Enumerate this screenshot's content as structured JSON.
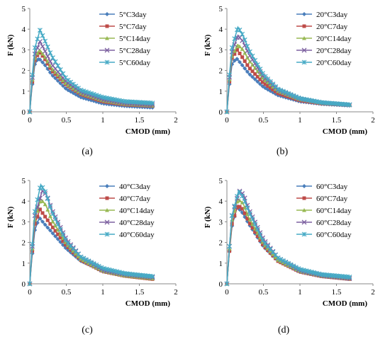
{
  "chart_data": [
    {
      "type": "line",
      "panel": "a",
      "caption": "(a)",
      "xlabel": "CMOD (mm)",
      "ylabel": "F (kN)",
      "xlim": [
        0,
        2
      ],
      "ylim": [
        0,
        5
      ],
      "xticks": [
        "0",
        "0.5",
        "1",
        "1.5",
        "2"
      ],
      "yticks": [
        "0",
        "1",
        "2",
        "3",
        "4",
        "5"
      ],
      "legend_position": "top-right",
      "series": [
        {
          "name": "5°C3day",
          "color": "#4a7ebb",
          "marker": "diamond",
          "x": [
            0,
            0.03,
            0.07,
            0.12,
            0.2,
            0.3,
            0.5,
            0.7,
            1.0,
            1.3,
            1.7
          ],
          "y": [
            0,
            1.2,
            2.3,
            2.6,
            2.3,
            1.8,
            1.1,
            0.7,
            0.4,
            0.28,
            0.2
          ]
        },
        {
          "name": "5°C7day",
          "color": "#be4b48",
          "marker": "square",
          "x": [
            0,
            0.03,
            0.07,
            0.13,
            0.2,
            0.3,
            0.5,
            0.7,
            1.0,
            1.3,
            1.7
          ],
          "y": [
            0,
            1.3,
            2.5,
            2.9,
            2.6,
            2.0,
            1.3,
            0.85,
            0.5,
            0.35,
            0.28
          ]
        },
        {
          "name": "5°C14day",
          "color": "#98b954",
          "marker": "triangle",
          "x": [
            0,
            0.03,
            0.07,
            0.13,
            0.2,
            0.3,
            0.5,
            0.7,
            1.0,
            1.3,
            1.7
          ],
          "y": [
            0,
            1.4,
            2.6,
            3.0,
            2.7,
            2.1,
            1.35,
            0.9,
            0.55,
            0.38,
            0.3
          ]
        },
        {
          "name": "5°C28day",
          "color": "#7d60a0",
          "marker": "x",
          "x": [
            0,
            0.03,
            0.07,
            0.14,
            0.2,
            0.3,
            0.5,
            0.7,
            1.0,
            1.3,
            1.7
          ],
          "y": [
            0,
            1.5,
            2.8,
            3.4,
            3.0,
            2.3,
            1.45,
            0.95,
            0.6,
            0.42,
            0.34
          ]
        },
        {
          "name": "5°C60day",
          "color": "#46aac5",
          "marker": "star",
          "x": [
            0,
            0.03,
            0.07,
            0.14,
            0.2,
            0.3,
            0.5,
            0.7,
            1.0,
            1.3,
            1.7
          ],
          "y": [
            0,
            1.6,
            3.1,
            3.95,
            3.5,
            2.7,
            1.6,
            1.05,
            0.7,
            0.5,
            0.42
          ]
        }
      ]
    },
    {
      "type": "line",
      "panel": "b",
      "caption": "(b)",
      "xlabel": "CMOD (mm)",
      "ylabel": "F (kN)",
      "xlim": [
        0,
        2
      ],
      "ylim": [
        0,
        5
      ],
      "xticks": [
        "0",
        "0.5",
        "1",
        "1.5",
        "2"
      ],
      "yticks": [
        "0",
        "1",
        "2",
        "3",
        "4",
        "5"
      ],
      "legend_position": "top-right",
      "series": [
        {
          "name": "20°C3day",
          "color": "#4a7ebb",
          "marker": "diamond",
          "x": [
            0,
            0.03,
            0.07,
            0.13,
            0.2,
            0.3,
            0.5,
            0.7,
            1.0,
            1.3,
            1.7
          ],
          "y": [
            0,
            1.2,
            2.3,
            2.6,
            2.3,
            1.85,
            1.2,
            0.8,
            0.5,
            0.38,
            0.3
          ]
        },
        {
          "name": "20°C7day",
          "color": "#be4b48",
          "marker": "square",
          "x": [
            0,
            0.03,
            0.07,
            0.14,
            0.2,
            0.3,
            0.5,
            0.7,
            1.0,
            1.3,
            1.7
          ],
          "y": [
            0,
            1.3,
            2.6,
            3.0,
            2.7,
            2.15,
            1.4,
            0.9,
            0.55,
            0.4,
            0.32
          ]
        },
        {
          "name": "20°C14day",
          "color": "#98b954",
          "marker": "triangle",
          "x": [
            0,
            0.03,
            0.07,
            0.15,
            0.22,
            0.3,
            0.5,
            0.7,
            1.0,
            1.3,
            1.7
          ],
          "y": [
            0,
            1.4,
            2.7,
            3.25,
            3.0,
            2.5,
            1.6,
            1.0,
            0.6,
            0.42,
            0.32
          ]
        },
        {
          "name": "20°C28day",
          "color": "#7d60a0",
          "marker": "x",
          "x": [
            0,
            0.03,
            0.07,
            0.15,
            0.22,
            0.3,
            0.5,
            0.7,
            1.0,
            1.3,
            1.7
          ],
          "y": [
            0,
            1.5,
            2.9,
            3.7,
            3.4,
            2.8,
            1.7,
            1.05,
            0.62,
            0.44,
            0.33
          ]
        },
        {
          "name": "20°C60day",
          "color": "#46aac5",
          "marker": "star",
          "x": [
            0,
            0.03,
            0.07,
            0.15,
            0.22,
            0.3,
            0.5,
            0.7,
            1.0,
            1.3,
            1.7
          ],
          "y": [
            0,
            1.6,
            3.1,
            4.1,
            3.7,
            3.0,
            1.8,
            1.1,
            0.65,
            0.45,
            0.34
          ]
        }
      ]
    },
    {
      "type": "line",
      "panel": "c",
      "caption": "(c)",
      "xlabel": "CMOD (mm)",
      "ylabel": "F (kN)",
      "xlim": [
        0,
        2
      ],
      "ylim": [
        0,
        5
      ],
      "xticks": [
        "0",
        "0.5",
        "1",
        "1.5",
        "2"
      ],
      "yticks": [
        "0",
        "1",
        "2",
        "3",
        "4",
        "5"
      ],
      "legend_position": "top-right",
      "series": [
        {
          "name": "40°C3day",
          "color": "#4a7ebb",
          "marker": "diamond",
          "x": [
            0,
            0.03,
            0.07,
            0.13,
            0.2,
            0.3,
            0.5,
            0.7,
            1.0,
            1.3,
            1.7
          ],
          "y": [
            0,
            1.3,
            2.6,
            3.2,
            2.9,
            2.5,
            1.7,
            1.1,
            0.65,
            0.45,
            0.3
          ]
        },
        {
          "name": "40°C7day",
          "color": "#be4b48",
          "marker": "square",
          "x": [
            0,
            0.03,
            0.07,
            0.14,
            0.2,
            0.3,
            0.5,
            0.7,
            1.0,
            1.3,
            1.7
          ],
          "y": [
            0,
            1.4,
            2.9,
            3.6,
            3.3,
            2.8,
            1.85,
            1.15,
            0.6,
            0.38,
            0.22
          ]
        },
        {
          "name": "40°C14day",
          "color": "#98b954",
          "marker": "triangle",
          "x": [
            0,
            0.03,
            0.07,
            0.15,
            0.22,
            0.3,
            0.5,
            0.7,
            1.0,
            1.3,
            1.7
          ],
          "y": [
            0,
            1.5,
            3.1,
            4.1,
            3.8,
            3.1,
            1.95,
            1.2,
            0.62,
            0.4,
            0.25
          ]
        },
        {
          "name": "40°C28day",
          "color": "#7d60a0",
          "marker": "x",
          "x": [
            0,
            0.03,
            0.07,
            0.17,
            0.23,
            0.3,
            0.5,
            0.7,
            1.0,
            1.3,
            1.7
          ],
          "y": [
            0,
            1.6,
            3.3,
            4.5,
            4.3,
            3.6,
            2.15,
            1.3,
            0.65,
            0.45,
            0.3
          ]
        },
        {
          "name": "40°C60day",
          "color": "#46aac5",
          "marker": "star",
          "x": [
            0,
            0.03,
            0.07,
            0.15,
            0.22,
            0.3,
            0.5,
            0.7,
            1.0,
            1.3,
            1.7
          ],
          "y": [
            0,
            1.7,
            3.5,
            4.8,
            4.4,
            3.5,
            2.05,
            1.3,
            0.75,
            0.5,
            0.35
          ]
        }
      ]
    },
    {
      "type": "line",
      "panel": "d",
      "caption": "(d)",
      "xlabel": "CMOD (mm)",
      "ylabel": "F (kN)",
      "xlim": [
        0,
        2
      ],
      "ylim": [
        0,
        5
      ],
      "xticks": [
        "0",
        "0.5",
        "1",
        "1.5",
        "2"
      ],
      "yticks": [
        "0",
        "1",
        "2",
        "3",
        "4",
        "5"
      ],
      "legend_position": "top-right",
      "series": [
        {
          "name": "60°C3day",
          "color": "#4a7ebb",
          "marker": "diamond",
          "x": [
            0,
            0.03,
            0.07,
            0.14,
            0.2,
            0.3,
            0.5,
            0.7,
            1.0,
            1.3,
            1.7
          ],
          "y": [
            0,
            1.4,
            2.8,
            3.7,
            3.5,
            2.9,
            1.8,
            1.1,
            0.6,
            0.38,
            0.25
          ]
        },
        {
          "name": "60°C7day",
          "color": "#be4b48",
          "marker": "square",
          "x": [
            0,
            0.03,
            0.07,
            0.15,
            0.22,
            0.3,
            0.5,
            0.7,
            1.0,
            1.3,
            1.7
          ],
          "y": [
            0,
            1.4,
            2.9,
            3.8,
            3.6,
            3.0,
            1.85,
            1.1,
            0.58,
            0.36,
            0.22
          ]
        },
        {
          "name": "60°C14day",
          "color": "#98b954",
          "marker": "triangle",
          "x": [
            0,
            0.03,
            0.07,
            0.15,
            0.22,
            0.3,
            0.5,
            0.7,
            1.0,
            1.3,
            1.7
          ],
          "y": [
            0,
            1.5,
            3.1,
            4.1,
            3.9,
            3.2,
            1.95,
            1.15,
            0.6,
            0.38,
            0.24
          ]
        },
        {
          "name": "60°C28day",
          "color": "#7d60a0",
          "marker": "x",
          "x": [
            0,
            0.03,
            0.07,
            0.17,
            0.23,
            0.3,
            0.5,
            0.7,
            1.0,
            1.3,
            1.7
          ],
          "y": [
            0,
            1.6,
            3.3,
            4.5,
            4.3,
            3.6,
            2.15,
            1.25,
            0.62,
            0.4,
            0.25
          ]
        },
        {
          "name": "60°C60day",
          "color": "#46aac5",
          "marker": "star",
          "x": [
            0,
            0.03,
            0.07,
            0.16,
            0.22,
            0.3,
            0.5,
            0.7,
            1.0,
            1.3,
            1.7
          ],
          "y": [
            0,
            1.6,
            3.3,
            4.5,
            4.2,
            3.5,
            2.05,
            1.25,
            0.7,
            0.45,
            0.32
          ]
        }
      ]
    }
  ]
}
